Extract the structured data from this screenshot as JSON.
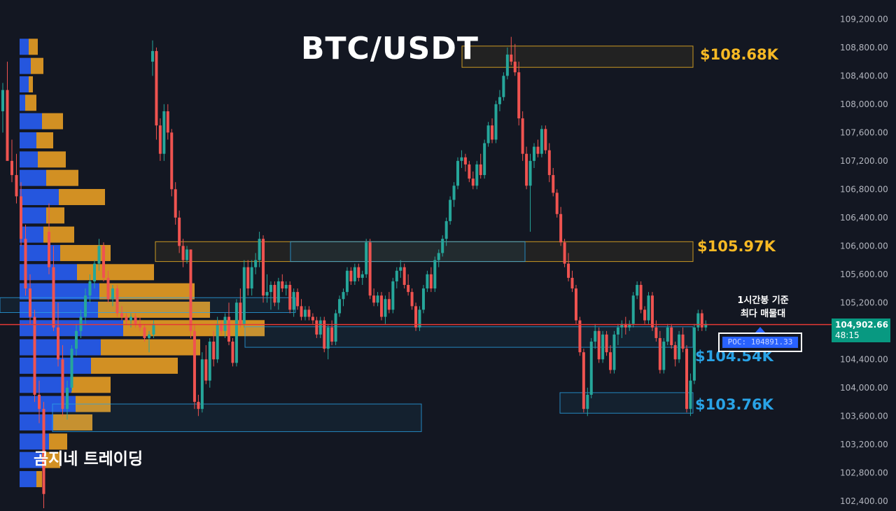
{
  "title": "BTC/USDT",
  "watermark": "곰지네 트레이딩",
  "colors": {
    "background": "#131722",
    "up_candle": "#26a69a",
    "down_candle": "#ef5350",
    "resistance": "#f7b924",
    "support": "#29a3e6",
    "poc_line": "#e53935",
    "vp_up": "#2962ff",
    "vp_down": "#f5a623"
  },
  "zones": [
    {
      "label": "$108.68K",
      "price": 108680,
      "kind": "resistance"
    },
    {
      "label": "$105.97K",
      "price": 105970,
      "kind": "resistance"
    },
    {
      "label": "$104.54K",
      "price": 104540,
      "kind": "support"
    },
    {
      "label": "$103.76K",
      "price": 103760,
      "kind": "support"
    }
  ],
  "poc": {
    "note_line1": "1시간봉 기준",
    "note_line2": "최다 매물대",
    "label": "POC: 104891.33",
    "price": 104891.33
  },
  "current_price": {
    "value": "104,902.66",
    "countdown": "48:15"
  },
  "chart_data": {
    "type": "candlestick",
    "title": "BTC/USDT",
    "y_axis": {
      "ticks": [
        "109,200.00",
        "108,800.00",
        "108,400.00",
        "108,000.00",
        "107,600.00",
        "107,200.00",
        "106,800.00",
        "106,400.00",
        "106,000.00",
        "105,600.00",
        "105,200.00",
        "104,800.00",
        "104,400.00",
        "104,000.00",
        "103,600.00",
        "103,200.00",
        "102,800.00",
        "102,400.00"
      ],
      "range": [
        102260,
        109470
      ],
      "position": "right"
    },
    "volume_profile": [
      {
        "price": 108800,
        "buy": 13,
        "sell": 13
      },
      {
        "price": 108530,
        "buy": 16,
        "sell": 18
      },
      {
        "price": 108270,
        "buy": 13,
        "sell": 6
      },
      {
        "price": 108010,
        "buy": 8,
        "sell": 16
      },
      {
        "price": 107750,
        "buy": 32,
        "sell": 30
      },
      {
        "price": 107480,
        "buy": 24,
        "sell": 24
      },
      {
        "price": 107210,
        "buy": 26,
        "sell": 40
      },
      {
        "price": 106950,
        "buy": 38,
        "sell": 46
      },
      {
        "price": 106680,
        "buy": 56,
        "sell": 66
      },
      {
        "price": 106420,
        "buy": 38,
        "sell": 26
      },
      {
        "price": 106150,
        "buy": 34,
        "sell": 44
      },
      {
        "price": 105890,
        "buy": 58,
        "sell": 72
      },
      {
        "price": 105620,
        "buy": 82,
        "sell": 110
      },
      {
        "price": 105350,
        "buy": 114,
        "sell": 136
      },
      {
        "price": 105090,
        "buy": 112,
        "sell": 160
      },
      {
        "price": 104830,
        "buy": 148,
        "sell": 202
      },
      {
        "price": 104560,
        "buy": 116,
        "sell": 142
      },
      {
        "price": 104300,
        "buy": 102,
        "sell": 124
      },
      {
        "price": 104030,
        "buy": 74,
        "sell": 56
      },
      {
        "price": 103760,
        "buy": 80,
        "sell": 50
      },
      {
        "price": 103500,
        "buy": 48,
        "sell": 56
      },
      {
        "price": 103230,
        "buy": 42,
        "sell": 26
      },
      {
        "price": 102970,
        "buy": 32,
        "sell": 26
      },
      {
        "price": 102700,
        "buy": 24,
        "sell": 8
      }
    ],
    "candles": [
      [
        108600,
        108900,
        108400,
        108750
      ],
      [
        108750,
        108800,
        107500,
        107700
      ],
      [
        107700,
        107800,
        107200,
        107300
      ],
      [
        107300,
        108000,
        107200,
        107900
      ],
      [
        107900,
        108000,
        107500,
        107600
      ],
      [
        107600,
        107650,
        106700,
        106800
      ],
      [
        106800,
        106900,
        106300,
        106400
      ],
      [
        106400,
        106500,
        105900,
        106000
      ],
      [
        106000,
        106100,
        105700,
        105800
      ],
      [
        105800,
        106000,
        105750,
        105950
      ],
      [
        105950,
        105950,
        104700,
        104800
      ],
      [
        104800,
        104900,
        103700,
        103800
      ],
      [
        103800,
        103900,
        103600,
        103700
      ],
      [
        103700,
        104500,
        103650,
        104400
      ],
      [
        104400,
        104600,
        104050,
        104100
      ],
      [
        104100,
        104700,
        104000,
        104650
      ],
      [
        104650,
        104800,
        104300,
        104400
      ],
      [
        104400,
        105000,
        104350,
        104900
      ],
      [
        104900,
        104950,
        104750,
        104800
      ],
      [
        104800,
        105050,
        104700,
        105000
      ],
      [
        105000,
        105200,
        104600,
        104650
      ],
      [
        104650,
        104700,
        104300,
        104350
      ],
      [
        104350,
        105250,
        104300,
        105200
      ],
      [
        105200,
        105400,
        104850,
        104900
      ],
      [
        104900,
        105800,
        104850,
        105700
      ],
      [
        105700,
        105800,
        105300,
        105400
      ],
      [
        105400,
        105800,
        105300,
        105700
      ],
      [
        105700,
        105900,
        105600,
        105800
      ],
      [
        105800,
        106200,
        105700,
        106100
      ],
      [
        106100,
        106150,
        105200,
        105300
      ],
      [
        105300,
        105600,
        105200,
        105350
      ],
      [
        105350,
        105500,
        105100,
        105450
      ],
      [
        105450,
        105500,
        105150,
        105200
      ],
      [
        105200,
        105550,
        105100,
        105500
      ],
      [
        105500,
        105600,
        105350,
        105400
      ],
      [
        105400,
        105500,
        105300,
        105450
      ],
      [
        105450,
        105500,
        105050,
        105100
      ],
      [
        105100,
        105400,
        105000,
        105350
      ],
      [
        105350,
        105400,
        105100,
        105150
      ],
      [
        105150,
        105250,
        104950,
        105000
      ],
      [
        105000,
        105150,
        104950,
        105100
      ],
      [
        105100,
        105150,
        104950,
        105000
      ],
      [
        105000,
        105050,
        104900,
        104950
      ],
      [
        104950,
        105000,
        104700,
        104750
      ],
      [
        104750,
        105000,
        104700,
        104950
      ],
      [
        104950,
        105000,
        104500,
        104550
      ],
      [
        104550,
        104900,
        104400,
        104850
      ],
      [
        104850,
        104950,
        104600,
        104650
      ],
      [
        104650,
        105100,
        104600,
        105050
      ],
      [
        105050,
        105300,
        105000,
        105250
      ],
      [
        105250,
        105400,
        105150,
        105350
      ],
      [
        105350,
        105700,
        105300,
        105650
      ],
      [
        105650,
        105700,
        105450,
        105500
      ],
      [
        105500,
        105750,
        105450,
        105700
      ],
      [
        105700,
        105750,
        105500,
        105550
      ],
      [
        105550,
        105650,
        105450,
        105600
      ],
      [
        105600,
        106100,
        105550,
        106050
      ],
      [
        106050,
        106100,
        105250,
        105300
      ],
      [
        105300,
        105400,
        105150,
        105200
      ],
      [
        105200,
        105350,
        105150,
        105300
      ],
      [
        105300,
        105350,
        104950,
        105000
      ],
      [
        105000,
        105300,
        104900,
        105250
      ],
      [
        105250,
        105350,
        105050,
        105100
      ],
      [
        105100,
        105550,
        105050,
        105500
      ],
      [
        105500,
        105700,
        105400,
        105650
      ],
      [
        105650,
        105800,
        105550,
        105700
      ],
      [
        105700,
        105750,
        105400,
        105450
      ],
      [
        105450,
        105600,
        105300,
        105350
      ],
      [
        105350,
        105400,
        105100,
        105150
      ],
      [
        105150,
        105200,
        104800,
        104850
      ],
      [
        104850,
        105150,
        104800,
        105100
      ],
      [
        105100,
        105450,
        105050,
        105400
      ],
      [
        105400,
        105650,
        105350,
        105600
      ],
      [
        105600,
        105700,
        105350,
        105400
      ],
      [
        105400,
        105850,
        105350,
        105800
      ],
      [
        105800,
        105950,
        105700,
        105900
      ],
      [
        105900,
        106150,
        105850,
        106100
      ],
      [
        106100,
        106400,
        106000,
        106350
      ],
      [
        106350,
        106700,
        106300,
        106650
      ],
      [
        106650,
        106900,
        106550,
        106850
      ],
      [
        106850,
        107250,
        106800,
        107200
      ],
      [
        107200,
        107350,
        107100,
        107250
      ],
      [
        107250,
        107300,
        107050,
        107150
      ],
      [
        107150,
        107200,
        106900,
        106950
      ],
      [
        106950,
        107050,
        106800,
        106850
      ],
      [
        106850,
        107200,
        106800,
        107150
      ],
      [
        107150,
        107300,
        106950,
        107000
      ],
      [
        107000,
        107500,
        106950,
        107450
      ],
      [
        107450,
        107750,
        107400,
        107700
      ],
      [
        107700,
        107800,
        107450,
        107500
      ],
      [
        107500,
        108050,
        107450,
        108000
      ],
      [
        108000,
        108200,
        107900,
        108100
      ],
      [
        108100,
        108450,
        108050,
        108400
      ],
      [
        108400,
        108800,
        108350,
        108700
      ],
      [
        108700,
        108950,
        108550,
        108600
      ],
      [
        108600,
        108850,
        108400,
        108450
      ],
      [
        108450,
        108600,
        107700,
        107800
      ],
      [
        107800,
        107900,
        107200,
        107300
      ],
      [
        107300,
        107400,
        106800,
        106850
      ],
      [
        106850,
        107300,
        106200,
        107200
      ],
      [
        107200,
        107450,
        107100,
        107400
      ],
      [
        107400,
        107500,
        107250,
        107300
      ],
      [
        107300,
        107700,
        107250,
        107650
      ],
      [
        107650,
        107700,
        107300,
        107350
      ],
      [
        107350,
        107450,
        106900,
        107000
      ],
      [
        107000,
        107100,
        106700,
        106750
      ],
      [
        106750,
        106800,
        106400,
        106450
      ],
      [
        106450,
        106550,
        106000,
        106050
      ],
      [
        106050,
        106100,
        105700,
        105750
      ],
      [
        105750,
        105900,
        105500,
        105550
      ],
      [
        105550,
        105650,
        105350,
        105400
      ],
      [
        105400,
        105450,
        104900,
        104950
      ],
      [
        104950,
        105000,
        104450,
        104500
      ],
      [
        104500,
        104550,
        103650,
        103700
      ],
      [
        103700,
        104000,
        103600,
        103900
      ],
      [
        103900,
        104700,
        103850,
        104650
      ],
      [
        104650,
        104900,
        104550,
        104800
      ],
      [
        104800,
        104850,
        104350,
        104400
      ],
      [
        104400,
        104800,
        104350,
        104750
      ],
      [
        104750,
        104800,
        104450,
        104500
      ],
      [
        104500,
        104600,
        104200,
        104250
      ],
      [
        104250,
        104800,
        104200,
        104750
      ],
      [
        104750,
        104900,
        104600,
        104850
      ],
      [
        104850,
        104950,
        104700,
        104900
      ],
      [
        104900,
        105000,
        104750,
        104850
      ],
      [
        104850,
        104950,
        104800,
        104900
      ],
      [
        104900,
        105350,
        104850,
        105300
      ],
      [
        105300,
        105500,
        105250,
        105450
      ],
      [
        105450,
        105500,
        105050,
        105100
      ],
      [
        105100,
        105150,
        104900,
        104950
      ],
      [
        104950,
        105350,
        104900,
        105300
      ],
      [
        105300,
        105350,
        104800,
        104850
      ],
      [
        104850,
        104950,
        104650,
        104700
      ],
      [
        104700,
        104800,
        104200,
        104250
      ],
      [
        104250,
        104700,
        104200,
        104650
      ],
      [
        104650,
        104900,
        104600,
        104850
      ],
      [
        104850,
        104900,
        104550,
        104600
      ],
      [
        104600,
        104650,
        104300,
        104400
      ],
      [
        104400,
        104800,
        104350,
        104750
      ],
      [
        104750,
        104850,
        104500,
        104550
      ],
      [
        104550,
        104600,
        103650,
        103700
      ],
      [
        103700,
        104200,
        103600,
        104100
      ],
      [
        104100,
        104900,
        104050,
        104850
      ],
      [
        104850,
        105100,
        104800,
        105050
      ],
      [
        105050,
        105100,
        104800,
        104850
      ],
      [
        104850,
        104950,
        104800,
        104900
      ]
    ],
    "left_candles": [
      [
        106200,
        106600,
        105600,
        105700
      ],
      [
        105700,
        106000,
        104800,
        104850
      ],
      [
        104850,
        105200,
        104300,
        104400
      ],
      [
        104400,
        104600,
        103600,
        103700
      ],
      [
        103700,
        104100,
        103550,
        104000
      ],
      [
        104000,
        104600,
        103950,
        104550
      ],
      [
        104550,
        104900,
        104450,
        104800
      ],
      [
        104800,
        105100,
        104700,
        105000
      ],
      [
        105000,
        105400,
        104900,
        105300
      ],
      [
        105300,
        105600,
        105200,
        105500
      ],
      [
        105500,
        105800,
        105400,
        105750
      ],
      [
        105750,
        106100,
        105650,
        106000
      ],
      [
        106000,
        106050,
        105500,
        105550
      ],
      [
        105550,
        105650,
        105200,
        105250
      ],
      [
        105250,
        105450,
        105150,
        105400
      ],
      [
        105400,
        105450,
        105000,
        105050
      ],
      [
        105050,
        105150,
        104950,
        105000
      ],
      [
        105000,
        105050,
        104900,
        104950
      ],
      [
        104950,
        105050,
        104850,
        105000
      ],
      [
        105000,
        105050,
        104850,
        104900
      ],
      [
        104900,
        105000,
        104800,
        104850
      ],
      [
        104850,
        104900,
        104650,
        104700
      ],
      [
        104700,
        104800,
        104500,
        104750
      ],
      [
        104750,
        104950,
        104700,
        104900
      ]
    ],
    "far_left_candles": [
      [
        107900,
        108300,
        107600,
        108200
      ],
      [
        108200,
        108600,
        108000,
        107200
      ],
      [
        107200,
        107500,
        106900,
        107000
      ],
      [
        107000,
        107300,
        106600,
        106700
      ],
      [
        106700,
        106900,
        106000,
        106100
      ],
      [
        106100,
        106300,
        105300,
        105400
      ],
      [
        105400,
        105600,
        104900,
        105000
      ],
      [
        105000,
        105100,
        103800,
        103900
      ],
      [
        103900,
        104100,
        103500,
        103700
      ],
      [
        103700,
        103800,
        102300,
        102500
      ]
    ],
    "grid": false,
    "legend": "none"
  }
}
